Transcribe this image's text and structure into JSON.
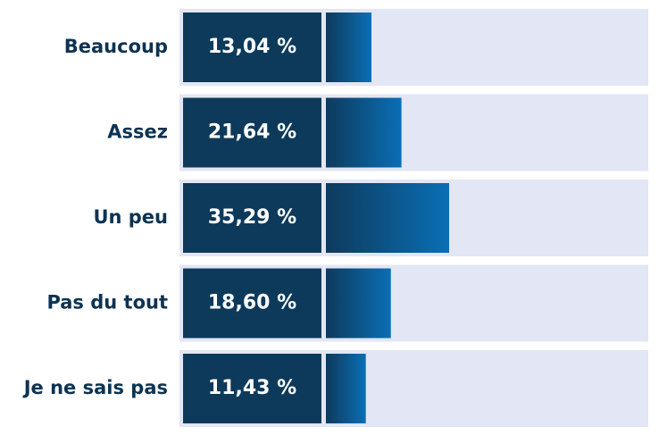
{
  "chart_data": {
    "type": "bar",
    "orientation": "horizontal",
    "categories": [
      "Beaucoup",
      "Assez",
      "Un peu",
      "Pas du tout",
      "Je ne sais pas"
    ],
    "values": [
      13.04,
      21.64,
      35.29,
      18.6,
      11.43
    ],
    "value_labels": [
      "13,04 %",
      "21,64 %",
      "35,29 %",
      "18,60 %",
      "11,43 %"
    ],
    "color": "#0a6fb5"
  }
}
